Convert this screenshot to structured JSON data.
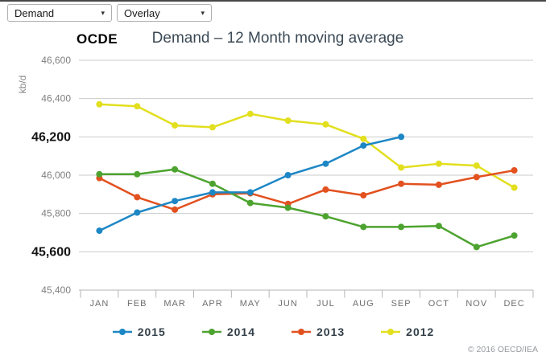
{
  "toolbar": {
    "dataset_dropdown": {
      "value": "Demand"
    },
    "overlay_dropdown": {
      "value": "Overlay"
    },
    "caret": "▾"
  },
  "header": {
    "region_label": "OCDE",
    "chart_title": "Demand – 12 Month moving average"
  },
  "footer": {
    "copyright": "© 2016 OECD/IEA"
  },
  "chart_data": {
    "type": "line",
    "title": "Demand – 12 Month moving average",
    "xlabel": "",
    "ylabel": "kb/d",
    "categories": [
      "JAN",
      "FEB",
      "MAR",
      "APR",
      "MAY",
      "JUN",
      "JUL",
      "AUG",
      "SEP",
      "OCT",
      "NOV",
      "DEC"
    ],
    "series": [
      {
        "name": "2015",
        "color": "#1d87c5",
        "values": [
          45710,
          45805,
          45865,
          45910,
          45910,
          46000,
          46060,
          46155,
          46200,
          null,
          null,
          null
        ]
      },
      {
        "name": "2014",
        "color": "#4da32f",
        "values": [
          46005,
          46005,
          46030,
          45955,
          45855,
          45830,
          45785,
          45730,
          45730,
          45735,
          45625,
          45685
        ]
      },
      {
        "name": "2013",
        "color": "#e2511f",
        "values": [
          45985,
          45885,
          45820,
          45900,
          45905,
          45850,
          45925,
          45895,
          45955,
          45950,
          45990,
          46025
        ]
      },
      {
        "name": "2012",
        "color": "#e2df1f",
        "values": [
          46370,
          46360,
          46260,
          46250,
          46320,
          46285,
          46265,
          46190,
          46040,
          46060,
          46050,
          45935
        ]
      }
    ],
    "ylim": [
      45400,
      46600
    ],
    "ytick_step": 200,
    "bold_yticks": [
      46200,
      45600
    ],
    "grid": true,
    "legend_position": "bottom",
    "colors": {
      "grid_line": "#cbcbcb",
      "axis_line": "#b5b5b5",
      "tick_label": "#7f7f7f",
      "bold_tick_label": "#141414",
      "month_label": "#6e6e6e"
    }
  }
}
